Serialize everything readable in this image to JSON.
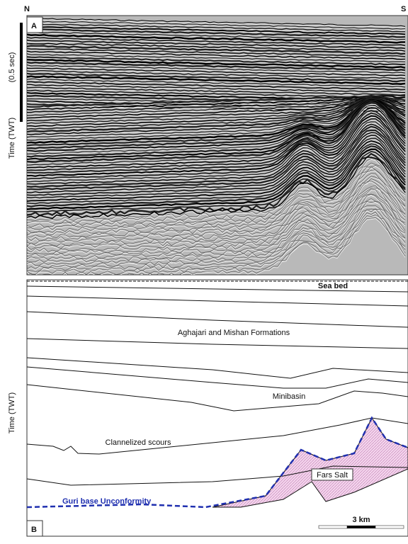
{
  "panel_a": {
    "north": "N",
    "south": "S",
    "label": "A",
    "scale": "(0.5 sec)",
    "axis": "Time (TWT)"
  },
  "panel_b": {
    "label": "B",
    "axis": "Time (TWT)",
    "sea_bed": "Sea bed",
    "formations": "Aghajari and Mishan Formations",
    "minibasin": "Minibasin",
    "scours": "Clannelized scours",
    "salt": "Fars Salt",
    "unconformity": "Guri base Unconformity",
    "scale_bar": "3 km"
  }
}
